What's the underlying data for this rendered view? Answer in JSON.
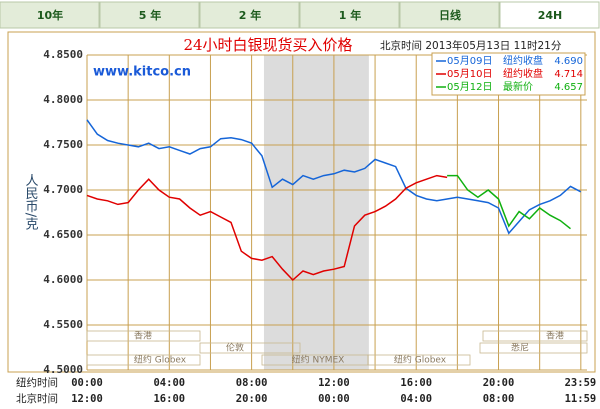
{
  "tabs": [
    "10年",
    "5 年",
    "2 年",
    "1 年",
    "日线",
    "24H"
  ],
  "chart_data": {
    "type": "line",
    "title": "24小时白银现货买入价格",
    "timestamp": "北京时间  2013年05月13日 11时21分",
    "watermark": "www.kitco.cn",
    "y_label": "人民币/克",
    "x_label": "纽约时间",
    "x2_label": "北京时间",
    "grid": true,
    "xlim": [
      0,
      24.3
    ],
    "ylim": [
      4.5,
      4.85
    ],
    "yticks": [
      {
        "value": 4.5,
        "label": "4.5000"
      },
      {
        "value": 4.55,
        "label": "4.5500"
      },
      {
        "value": 4.6,
        "label": "4.6000"
      },
      {
        "value": 4.65,
        "label": "4.6500"
      },
      {
        "value": 4.7,
        "label": "4.7000"
      },
      {
        "value": 4.75,
        "label": "4.7500"
      },
      {
        "value": 4.8,
        "label": "4.8000"
      },
      {
        "value": 4.85,
        "label": "4.8500"
      }
    ],
    "xticks": [
      {
        "value": 0,
        "label": "00:00"
      },
      {
        "value": 4,
        "label": "04:00"
      },
      {
        "value": 8,
        "label": "08:00"
      },
      {
        "value": 12,
        "label": "12:00"
      },
      {
        "value": 16,
        "label": "16:00"
      },
      {
        "value": 20,
        "label": "20:00"
      },
      {
        "value": 23.98,
        "label": "23:59"
      }
    ],
    "x2ticks": [
      {
        "value": 0,
        "label": "12:00"
      },
      {
        "value": 4,
        "label": "16:00"
      },
      {
        "value": 8,
        "label": "20:00"
      },
      {
        "value": 12,
        "label": "00:00"
      },
      {
        "value": 16,
        "label": "04:00"
      },
      {
        "value": 20,
        "label": "08:00"
      },
      {
        "value": 23.98,
        "label": "11:59"
      }
    ],
    "xgrid": [
      0,
      2,
      4,
      6,
      8,
      10,
      12,
      14,
      16,
      18,
      20,
      22,
      24
    ],
    "shaded": [
      8.6,
      13.7
    ],
    "sessions": [
      "香港",
      "伦敦",
      "纽约 Globex",
      "纽约 NYMEX",
      "纽约 Globex",
      "悉尼",
      "香港"
    ],
    "x": [
      0,
      0.5,
      1,
      1.5,
      2,
      2.5,
      3,
      3.5,
      4,
      4.5,
      5,
      5.5,
      6,
      6.5,
      7,
      7.5,
      8,
      8.5,
      9,
      9.5,
      10,
      10.5,
      11,
      11.5,
      12,
      12.5,
      13,
      13.5,
      14,
      14.5,
      15,
      15.5,
      16,
      16.5,
      17,
      17.5,
      18,
      18.5,
      19,
      19.5,
      20,
      20.5,
      21,
      21.5,
      22,
      22.5,
      23,
      23.5,
      24
    ],
    "series": [
      {
        "name": "05月09日",
        "label": "纽约收盘",
        "close": {
          "value": 4.69,
          "label": "4.690"
        },
        "color": "#1565d8",
        "values": [
          4.778,
          4.762,
          4.755,
          4.752,
          4.75,
          4.748,
          4.752,
          4.746,
          4.748,
          4.744,
          4.74,
          4.746,
          4.748,
          4.757,
          4.758,
          4.756,
          4.752,
          4.738,
          4.703,
          4.712,
          4.706,
          4.716,
          4.712,
          4.716,
          4.718,
          4.722,
          4.72,
          4.724,
          4.734,
          4.73,
          4.726,
          4.702,
          4.694,
          4.69,
          4.688,
          4.69,
          4.692,
          4.69,
          4.688,
          4.686,
          4.68,
          4.652,
          4.665,
          4.678,
          4.684,
          4.688,
          4.694,
          4.704,
          4.698
        ]
      },
      {
        "name": "05月10日",
        "label": "纽约收盘",
        "close": {
          "value": 4.714,
          "label": "4.714"
        },
        "color": "#e00000",
        "values": [
          4.694,
          4.69,
          4.688,
          4.684,
          4.686,
          4.7,
          4.712,
          4.7,
          4.692,
          4.69,
          4.68,
          4.672,
          4.676,
          4.67,
          4.664,
          4.632,
          4.624,
          4.622,
          4.626,
          4.612,
          4.6,
          4.61,
          4.606,
          4.61,
          4.612,
          4.615,
          4.66,
          4.672,
          4.676,
          4.682,
          4.69,
          4.702,
          4.708,
          4.712,
          4.716,
          4.714,
          null,
          null,
          null,
          null,
          null,
          null,
          null,
          null,
          null,
          null,
          null,
          null,
          null
        ]
      },
      {
        "name": "05月12日",
        "label": "最新价",
        "close": {
          "value": 4.657,
          "label": "4.657"
        },
        "color": "#10b010",
        "values": [
          null,
          null,
          null,
          null,
          null,
          null,
          null,
          null,
          null,
          null,
          null,
          null,
          null,
          null,
          null,
          null,
          null,
          null,
          null,
          null,
          null,
          null,
          null,
          null,
          null,
          null,
          null,
          null,
          null,
          null,
          null,
          null,
          null,
          null,
          null,
          4.716,
          4.716,
          4.7,
          4.692,
          4.7,
          4.69,
          4.66,
          4.676,
          4.668,
          4.68,
          4.672,
          4.666,
          4.657,
          null
        ]
      }
    ]
  }
}
